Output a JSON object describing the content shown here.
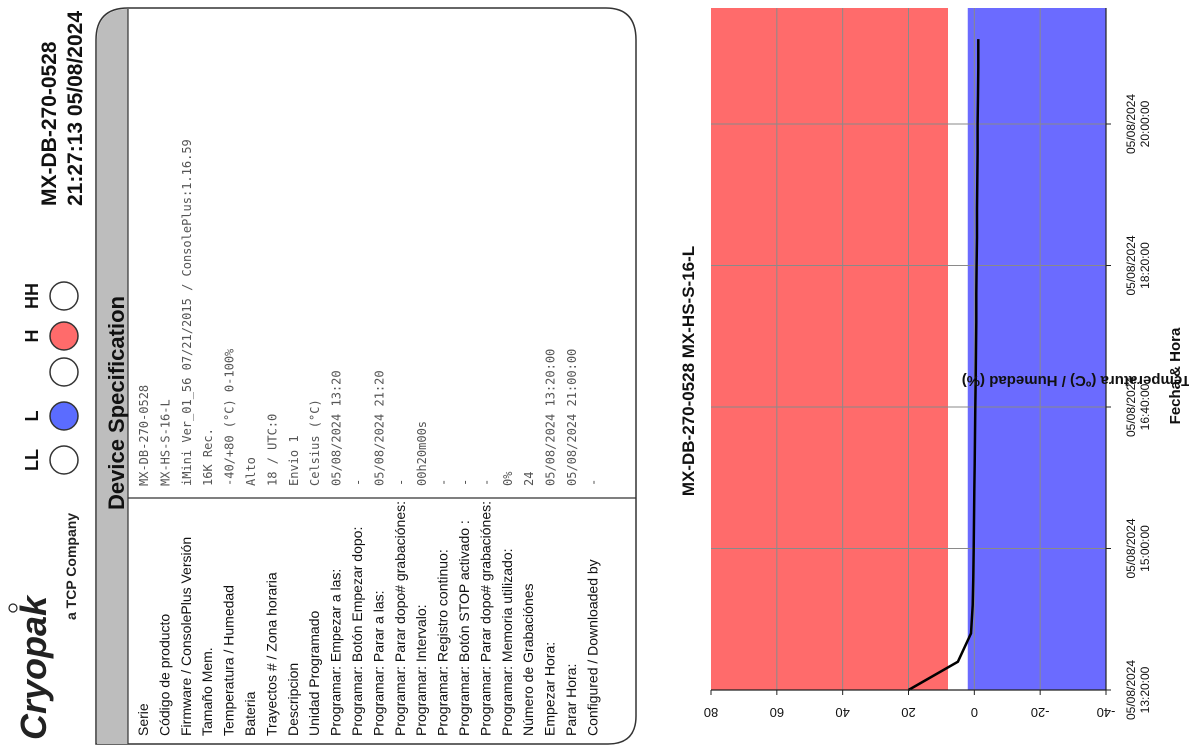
{
  "brand": {
    "name": "Cryopak",
    "tagline": "a TCP Company"
  },
  "header": {
    "serial": "MX-DB-270-0528",
    "timestamp": "21:27:13 05/08/2024"
  },
  "alarm_indicators": [
    {
      "label": "LL",
      "state": "off",
      "color": "#ffffff"
    },
    {
      "label": "L",
      "state": "on",
      "color": "#5b6cff"
    },
    {
      "label": "",
      "state": "off",
      "color": "#ffffff"
    },
    {
      "label": "H",
      "state": "on",
      "color": "#ff6b6b"
    },
    {
      "label": "HH",
      "state": "off",
      "color": "#ffffff"
    }
  ],
  "spec": {
    "title": "Device Specification",
    "rows": [
      {
        "label": "Serie",
        "value": "MX-DB-270-0528"
      },
      {
        "label": "Código de producto",
        "value": "MX-HS-S-16-L"
      },
      {
        "label": "Firmware / ConsolePlus Versión",
        "value": "iMini Ver_01_56 07/21/2015 / ConsolePlus:1.16.59"
      },
      {
        "label": "Tamaño Mem.",
        "value": "16K Rec."
      },
      {
        "label": "Temperatura / Humedad",
        "value": "-40/+80 (°C)    0-100%"
      },
      {
        "label": "Bateria",
        "value": "Alto"
      },
      {
        "label": "Trayectos # / Zona horaria",
        "value": "18 / UTC:0"
      },
      {
        "label": "Descripcion",
        "value": "Envio 1"
      },
      {
        "label": "Unidad Programado",
        "value": "Celsius (°C)"
      },
      {
        "label": "Programar: Empezar a las:",
        "value": "05/08/2024 13:20"
      },
      {
        "label": "Programar: Botón Empezar dopo:",
        "value": "-"
      },
      {
        "label": "Programar: Parar a las:",
        "value": "05/08/2024 21:20"
      },
      {
        "label": "Programar: Parar dopo# grabaciónes:",
        "value": "-"
      },
      {
        "label": "Programar: Intervalo:",
        "value": "00h20m00s"
      },
      {
        "label": "Programar: Registro continuo:",
        "value": "-"
      },
      {
        "label": "Programar: Botón STOP activado :",
        "value": "-"
      },
      {
        "label": "Programar: Parar dopo# grabaciónes:",
        "value": "-"
      },
      {
        "label": "Programar: Memoria utilizado:",
        "value": "0%"
      },
      {
        "label": "Número de Grabaciónes",
        "value": "24"
      },
      {
        "label": "Empezar Hora:",
        "value": "05/08/2024 13:20:00"
      },
      {
        "label": "Parar Hora:",
        "value": "05/08/2024 21:00:00"
      },
      {
        "label": "Configured / Downloaded by",
        "value": "-"
      }
    ]
  },
  "chart_data": {
    "type": "line",
    "title": "MX-DB-270-0528 MX-HS-S-16-L",
    "xlabel": "Fecha & Hora",
    "ylabel": "Temperatura (ºC) / Humedad (%)",
    "xlim": [
      "05/08/2024 13:20:00",
      "05/08/2024 21:00:00"
    ],
    "ylim": [
      -40,
      80
    ],
    "yticks": [
      80,
      60,
      40,
      20,
      0,
      -20,
      -40
    ],
    "xticks": [
      {
        "date": "05/08/2024",
        "time": "13:20:00"
      },
      {
        "date": "05/08/2024",
        "time": "15:00:00"
      },
      {
        "date": "05/08/2024",
        "time": "16:40:00"
      },
      {
        "date": "05/08/2024",
        "time": "18:20:00"
      },
      {
        "date": "05/08/2024",
        "time": "20:00:00"
      }
    ],
    "grid": true,
    "bands": [
      {
        "name": "high",
        "from": 8,
        "to": 80,
        "color": "#ff6b6b"
      },
      {
        "name": "low",
        "from": -40,
        "to": 2,
        "color": "#6b6bff"
      }
    ],
    "series": [
      {
        "color": "#000000",
        "x": [
          "05/08/2024 13:20:00",
          "05/08/2024 13:40:00",
          "05/08/2024 14:00:00",
          "05/08/2024 14:20:00",
          "05/08/2024 14:40:00",
          "05/08/2024 15:00:00",
          "05/08/2024 15:20:00",
          "05/08/2024 15:40:00",
          "05/08/2024 16:00:00",
          "05/08/2024 16:20:00",
          "05/08/2024 16:40:00",
          "05/08/2024 17:00:00",
          "05/08/2024 17:20:00",
          "05/08/2024 17:40:00",
          "05/08/2024 18:00:00",
          "05/08/2024 18:20:00",
          "05/08/2024 18:40:00",
          "05/08/2024 19:00:00",
          "05/08/2024 19:20:00",
          "05/08/2024 19:40:00",
          "05/08/2024 20:00:00",
          "05/08/2024 20:20:00",
          "05/08/2024 20:40:00",
          "05/08/2024 21:00:00"
        ],
        "y": [
          20,
          5,
          1,
          0.5,
          0.3,
          0.2,
          0.1,
          0,
          -0.1,
          -0.2,
          -0.3,
          -0.4,
          -0.5,
          -0.6,
          -0.6,
          -0.7,
          -0.8,
          -0.8,
          -0.9,
          -1.0,
          -1.0,
          -1.1,
          -1.2,
          -1.2
        ]
      }
    ]
  }
}
